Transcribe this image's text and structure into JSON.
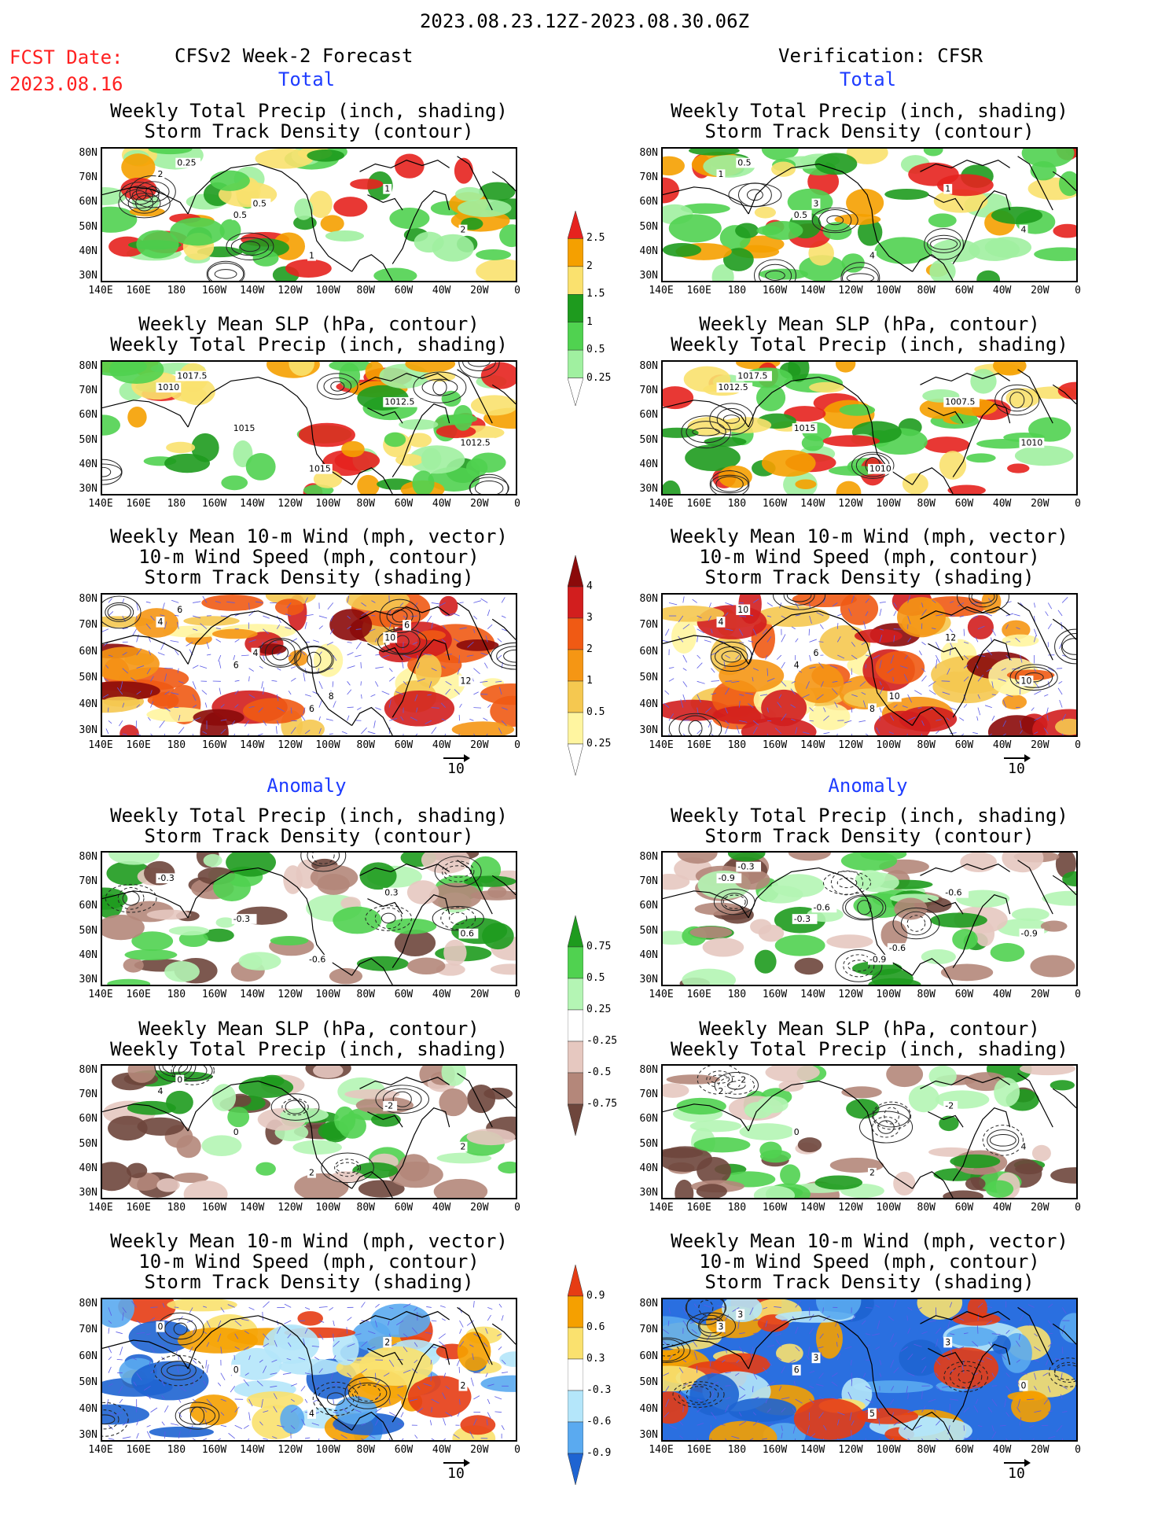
{
  "header": {
    "period": "2023.08.23.12Z-2023.08.30.06Z",
    "fcst_label": "FCST Date:",
    "fcst_date": "2023.08.16",
    "left_title": "CFSv2 Week-2 Forecast",
    "right_title": "Verification: CFSR"
  },
  "sections": {
    "total": "Total",
    "anomaly": "Anomaly"
  },
  "panel_titles": {
    "precip_storm": [
      "Weekly Total Precip (inch, shading)",
      "Storm Track Density (contour)"
    ],
    "slp_precip": [
      "Weekly Mean SLP (hPa, contour)",
      "Weekly Total Precip (inch, shading)"
    ],
    "wind": [
      "Weekly Mean 10-m Wind (mph, vector)",
      "10-m Wind Speed (mph, contour)",
      "Storm Track Density (shading)"
    ]
  },
  "axes": {
    "lat": [
      "80N",
      "70N",
      "60N",
      "50N",
      "40N",
      "30N"
    ],
    "lon": [
      "140E",
      "160E",
      "180",
      "160W",
      "140W",
      "120W",
      "100W",
      "80W",
      "60W",
      "40W",
      "20W",
      "0"
    ]
  },
  "vector_scale": "10",
  "colorbars": {
    "precip_total": {
      "labels": [
        "2.5",
        "2",
        "1.5",
        "1",
        "0.5",
        "0.25"
      ],
      "colors": [
        "#e6221e",
        "#f5a000",
        "#fae16e",
        "#1e9b1e",
        "#50d250",
        "#a0f0a0",
        "#ffffff"
      ]
    },
    "storm_total": {
      "labels": [
        "4",
        "3",
        "2",
        "1",
        "0.5",
        "0.25"
      ],
      "colors": [
        "#8b0a0a",
        "#d21e1e",
        "#f05a14",
        "#f59614",
        "#f5c850",
        "#fff5a0",
        "#ffffff"
      ]
    },
    "precip_anom": {
      "labels": [
        "0.75",
        "0.5",
        "0.25",
        "-0.25",
        "-0.5",
        "-0.75"
      ],
      "colors": [
        "#1e9b1e",
        "#50d250",
        "#b4f5b4",
        "#ffffff",
        "#e6c8c0",
        "#b4877a",
        "#6e463c"
      ]
    },
    "storm_anom": {
      "labels": [
        "0.9",
        "0.6",
        "0.3",
        "-0.3",
        "-0.6",
        "-0.9"
      ],
      "colors": [
        "#e63c14",
        "#f5a000",
        "#fae16e",
        "#ffffff",
        "#b4e6fa",
        "#5aaaf0",
        "#1e64d2"
      ]
    }
  },
  "contour_labels": {
    "l1": [
      "2",
      "0.5",
      "1",
      "1",
      "2",
      "0.25",
      "0.5"
    ],
    "r1": [
      "1",
      "0.5",
      "4",
      "1",
      "4",
      "0.5",
      "3"
    ],
    "l2": [
      "1010",
      "1015",
      "1015",
      "1012.5",
      "1012.5",
      "1017.5"
    ],
    "r2": [
      "1012.5",
      "1015",
      "1010",
      "1007.5",
      "1010",
      "1017.5"
    ],
    "l3": [
      "4",
      "6",
      "6",
      "10",
      "12",
      "6",
      "4",
      "8",
      "6"
    ],
    "r3": [
      "4",
      "4",
      "8",
      "12",
      "10",
      "10",
      "6",
      "10"
    ],
    "l4": [
      "-0.3",
      "-0.3",
      "-0.6",
      "0.3",
      "0.6"
    ],
    "r4": [
      "-0.9",
      "-0.3",
      "-0.9",
      "-0.6",
      "-0.9",
      "-0.3",
      "-0.6",
      "-0.6"
    ],
    "l5": [
      "4",
      "0",
      "2",
      "-2",
      "2",
      "0"
    ],
    "r5": [
      "2",
      "0",
      "2",
      "-2",
      "4",
      "-2"
    ],
    "l6": [
      "0",
      "0",
      "4",
      "2",
      "2"
    ],
    "r6": [
      "3",
      "6",
      "5",
      "3",
      "0",
      "3",
      "3"
    ]
  }
}
